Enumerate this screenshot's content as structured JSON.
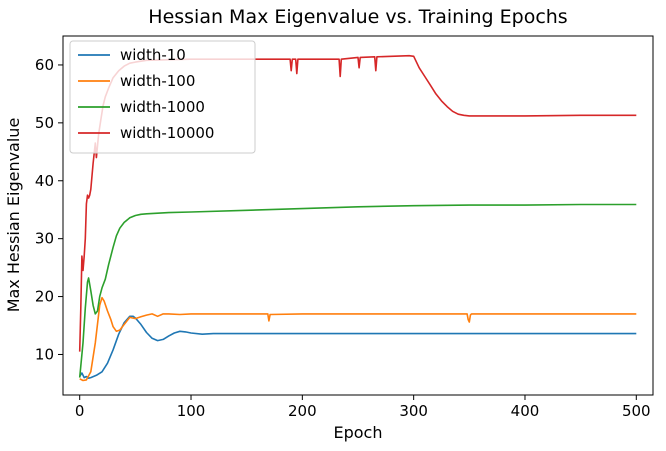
{
  "chart_data": {
    "type": "line",
    "title": "Hessian Max Eigenvalue vs. Training Epochs",
    "xlabel": "Epoch",
    "ylabel": "Max Hessian Eigenvalue",
    "xlim": [
      -15,
      515
    ],
    "ylim": [
      3,
      65
    ],
    "xticks": [
      0,
      100,
      200,
      300,
      400,
      500
    ],
    "yticks": [
      10,
      20,
      30,
      40,
      50,
      60
    ],
    "grid": false,
    "legend_position": "upper-left",
    "series": [
      {
        "name": "width-10",
        "color": "#1f77b4",
        "points": [
          [
            0,
            6.2
          ],
          [
            2,
            6.8
          ],
          [
            4,
            6.0
          ],
          [
            6,
            6.2
          ],
          [
            8,
            5.9
          ],
          [
            10,
            6.0
          ],
          [
            15,
            6.4
          ],
          [
            20,
            7.0
          ],
          [
            25,
            8.5
          ],
          [
            30,
            10.8
          ],
          [
            35,
            13.5
          ],
          [
            40,
            15.5
          ],
          [
            45,
            16.6
          ],
          [
            48,
            16.6
          ],
          [
            50,
            16.3
          ],
          [
            55,
            15.2
          ],
          [
            60,
            13.8
          ],
          [
            65,
            12.8
          ],
          [
            70,
            12.4
          ],
          [
            75,
            12.6
          ],
          [
            80,
            13.2
          ],
          [
            85,
            13.7
          ],
          [
            90,
            14.0
          ],
          [
            95,
            13.9
          ],
          [
            100,
            13.7
          ],
          [
            110,
            13.5
          ],
          [
            120,
            13.6
          ],
          [
            150,
            13.6
          ],
          [
            200,
            13.6
          ],
          [
            300,
            13.6
          ],
          [
            400,
            13.6
          ],
          [
            500,
            13.6
          ]
        ]
      },
      {
        "name": "width-100",
        "color": "#ff7f0e",
        "points": [
          [
            0,
            5.8
          ],
          [
            3,
            5.5
          ],
          [
            6,
            5.6
          ],
          [
            10,
            7.0
          ],
          [
            14,
            12.0
          ],
          [
            18,
            18.5
          ],
          [
            20,
            19.8
          ],
          [
            22,
            19.2
          ],
          [
            25,
            17.5
          ],
          [
            28,
            16.0
          ],
          [
            30,
            14.8
          ],
          [
            33,
            14.0
          ],
          [
            36,
            14.2
          ],
          [
            40,
            15.2
          ],
          [
            45,
            16.4
          ],
          [
            50,
            16.2
          ],
          [
            55,
            16.5
          ],
          [
            60,
            16.8
          ],
          [
            65,
            17.0
          ],
          [
            70,
            16.6
          ],
          [
            75,
            17.0
          ],
          [
            80,
            17.0
          ],
          [
            90,
            16.9
          ],
          [
            100,
            17.0
          ],
          [
            150,
            17.0
          ],
          [
            169,
            17.0
          ],
          [
            170,
            15.8
          ],
          [
            171,
            16.9
          ],
          [
            200,
            17.0
          ],
          [
            250,
            17.0
          ],
          [
            300,
            17.0
          ],
          [
            348,
            17.0
          ],
          [
            349,
            16.0
          ],
          [
            350,
            15.6
          ],
          [
            351,
            16.8
          ],
          [
            352,
            17.0
          ],
          [
            400,
            17.0
          ],
          [
            450,
            17.0
          ],
          [
            500,
            17.0
          ]
        ]
      },
      {
        "name": "width-1000",
        "color": "#2ca02c",
        "points": [
          [
            0,
            6.0
          ],
          [
            3,
            12.0
          ],
          [
            5,
            18.0
          ],
          [
            7,
            22.5
          ],
          [
            8,
            23.2
          ],
          [
            10,
            21.0
          ],
          [
            12,
            18.5
          ],
          [
            14,
            17.0
          ],
          [
            16,
            17.5
          ],
          [
            18,
            20.0
          ],
          [
            20,
            21.5
          ],
          [
            23,
            23.0
          ],
          [
            26,
            25.5
          ],
          [
            30,
            28.5
          ],
          [
            33,
            30.5
          ],
          [
            36,
            31.8
          ],
          [
            40,
            32.8
          ],
          [
            45,
            33.6
          ],
          [
            50,
            34.0
          ],
          [
            55,
            34.2
          ],
          [
            60,
            34.3
          ],
          [
            70,
            34.4
          ],
          [
            80,
            34.5
          ],
          [
            100,
            34.6
          ],
          [
            150,
            34.9
          ],
          [
            200,
            35.2
          ],
          [
            250,
            35.5
          ],
          [
            300,
            35.7
          ],
          [
            350,
            35.8
          ],
          [
            400,
            35.8
          ],
          [
            450,
            35.9
          ],
          [
            500,
            35.9
          ]
        ]
      },
      {
        "name": "width-10000",
        "color": "#d62728",
        "points": [
          [
            0,
            10.5
          ],
          [
            1,
            18.0
          ],
          [
            2,
            27.0
          ],
          [
            3,
            24.5
          ],
          [
            4,
            27.0
          ],
          [
            5,
            30.0
          ],
          [
            6,
            36.0
          ],
          [
            7,
            37.5
          ],
          [
            8,
            37.0
          ],
          [
            9,
            37.5
          ],
          [
            10,
            38.5
          ],
          [
            12,
            43.0
          ],
          [
            14,
            46.5
          ],
          [
            15,
            44.0
          ],
          [
            17,
            48.0
          ],
          [
            19,
            50.5
          ],
          [
            21,
            53.0
          ],
          [
            23,
            54.5
          ],
          [
            26,
            56.0
          ],
          [
            30,
            57.8
          ],
          [
            35,
            59.0
          ],
          [
            40,
            59.8
          ],
          [
            45,
            60.3
          ],
          [
            50,
            60.5
          ],
          [
            60,
            60.8
          ],
          [
            80,
            60.9
          ],
          [
            100,
            61.0
          ],
          [
            150,
            61.0
          ],
          [
            189,
            61.0
          ],
          [
            190,
            59.0
          ],
          [
            191,
            61.0
          ],
          [
            194,
            61.0
          ],
          [
            195,
            58.5
          ],
          [
            196,
            61.0
          ],
          [
            233,
            61.0
          ],
          [
            234,
            58.0
          ],
          [
            235,
            61.0
          ],
          [
            250,
            61.3
          ],
          [
            251,
            59.5
          ],
          [
            252,
            61.3
          ],
          [
            265,
            61.4
          ],
          [
            266,
            59.0
          ],
          [
            267,
            61.4
          ],
          [
            280,
            61.5
          ],
          [
            296,
            61.6
          ],
          [
            300,
            61.5
          ],
          [
            305,
            59.5
          ],
          [
            310,
            58.0
          ],
          [
            315,
            56.5
          ],
          [
            320,
            55.0
          ],
          [
            325,
            53.8
          ],
          [
            330,
            52.8
          ],
          [
            335,
            52.0
          ],
          [
            340,
            51.5
          ],
          [
            345,
            51.3
          ],
          [
            350,
            51.2
          ],
          [
            360,
            51.2
          ],
          [
            380,
            51.2
          ],
          [
            400,
            51.2
          ],
          [
            450,
            51.3
          ],
          [
            500,
            51.3
          ]
        ]
      }
    ]
  }
}
